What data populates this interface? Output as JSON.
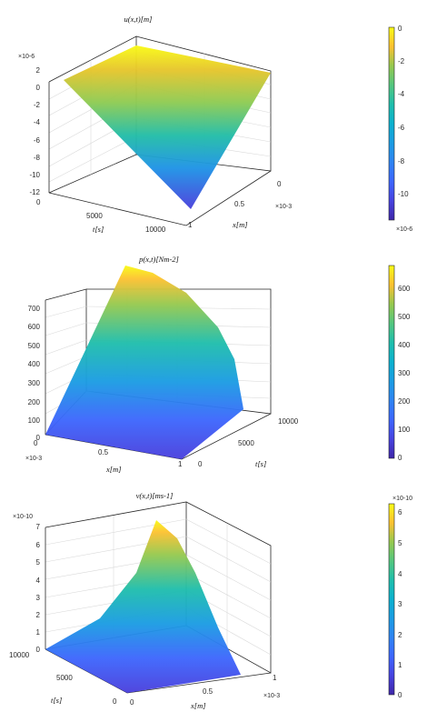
{
  "palette": [
    "#3e26a8",
    "#4743e0",
    "#3d66fd",
    "#2f84f2",
    "#1b9ce3",
    "#0cb1cf",
    "#1fbeac",
    "#54c77f",
    "#96c94f",
    "#d3bf29",
    "#fcc131",
    "#f9fb15"
  ],
  "chart_data": [
    {
      "type": "surface",
      "title": "u(x,t)[m]",
      "xlabel": "t[s]",
      "ylabel": "x[m]",
      "zlim": [
        -12,
        2
      ],
      "z_ticks": [
        "2",
        "0",
        "-2",
        "-4",
        "-6",
        "-8",
        "-10",
        "-12"
      ],
      "z_exponent": "×10-6",
      "t_ticks": [
        "0",
        "5000",
        "10000"
      ],
      "x_ticks": [
        "0",
        "0.5",
        "1"
      ],
      "x_exponent": "×10-3",
      "colorbar_ticks": [
        "0",
        "-2",
        "-4",
        "-6",
        "-8",
        "-10"
      ],
      "colorbar_exponent": "×10-6",
      "colorbar_range": [
        -11,
        0
      ],
      "surface_corners": {
        "t0_x0": 0,
        "t10000_x0": 0,
        "t0_x1e-3": 0,
        "t10000_x1e-3": -11
      }
    },
    {
      "type": "surface",
      "title": "p(x,t)[Nm-2]",
      "xlabel": "x[m]",
      "ylabel": "t[s]",
      "zlim": [
        0,
        700
      ],
      "z_ticks": [
        "700",
        "600",
        "500",
        "400",
        "300",
        "200",
        "100",
        "0"
      ],
      "x_ticks": [
        "0",
        "0.5",
        "1"
      ],
      "x_exponent": "×10-3",
      "t_ticks": [
        "0",
        "5000",
        "10000"
      ],
      "colorbar_ticks": [
        "600",
        "500",
        "400",
        "300",
        "200",
        "100",
        "0"
      ],
      "colorbar_range": [
        0,
        680
      ],
      "surface_corners": {
        "x0_t0": 0,
        "x0_t10000": 0,
        "x1e-3_t0": 0,
        "x1e-3_t10000": 680
      }
    },
    {
      "type": "surface",
      "title": "v(x,t)[ms-1]",
      "xlabel": "x[m]",
      "ylabel": "t[s]",
      "zlim": [
        0,
        7
      ],
      "z_ticks": [
        "7",
        "6",
        "5",
        "4",
        "3",
        "2",
        "1",
        "0"
      ],
      "z_exponent": "×10-10",
      "x_ticks": [
        "0",
        "0.5",
        "1"
      ],
      "x_exponent": "×10-3",
      "t_ticks": [
        "10000",
        "5000",
        "0"
      ],
      "colorbar_ticks": [
        "6",
        "5",
        "4",
        "3",
        "2",
        "1",
        "0"
      ],
      "colorbar_exponent": "×10-10",
      "colorbar_range": [
        0,
        6.2
      ],
      "surface_corners": {
        "x0_t0": 0,
        "x0_t10000": 0,
        "x1e-3_t0": 0,
        "x1e-3_t10000": 6.2
      }
    }
  ]
}
